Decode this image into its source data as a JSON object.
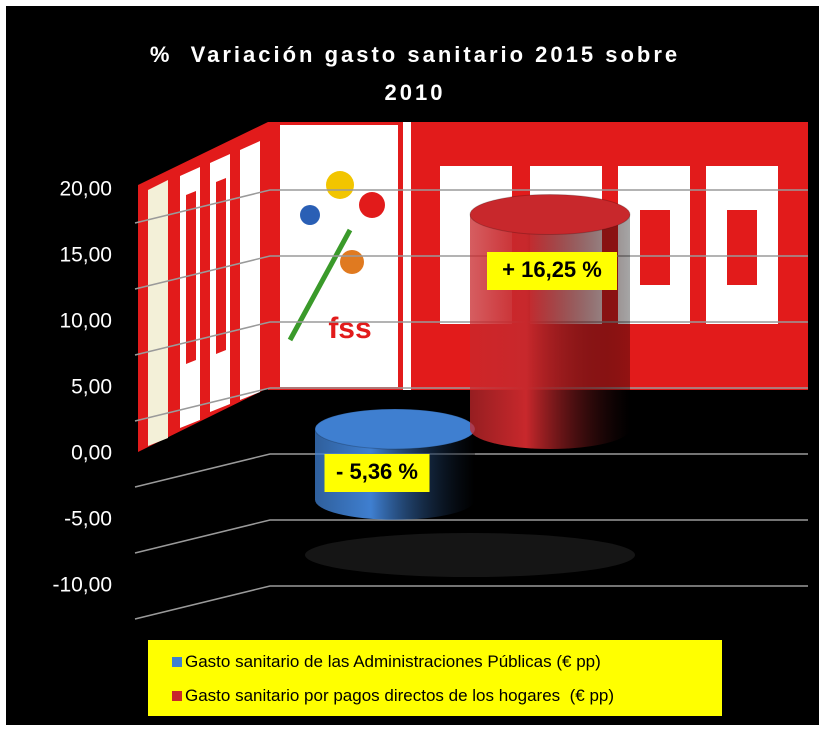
{
  "chart_data": {
    "type": "bar",
    "title": "%  Variación gasto sanitario 2015 sobre 2010",
    "ylim": [
      -10,
      20
    ],
    "yticks": [
      {
        "value": -10,
        "label": "-10,00"
      },
      {
        "value": -5,
        "label": "-5,00"
      },
      {
        "value": 0,
        "label": "0,00"
      },
      {
        "value": 5,
        "label": "5,00"
      },
      {
        "value": 10,
        "label": "10,00"
      },
      {
        "value": 15,
        "label": "15,00"
      },
      {
        "value": 20,
        "label": "20,00"
      }
    ],
    "grid": true,
    "legend": "bottom",
    "series": [
      {
        "name": "Gasto sanitario de las Administraciones Públicas (€ pp)",
        "color": "#3f7fd0",
        "values": [
          -5.36
        ],
        "value_labels": [
          "- 5,36 %"
        ]
      },
      {
        "name": "Gasto sanitario por pagos directos de los hogares  (€ pp)",
        "color": "#c8282c",
        "values": [
          16.25
        ],
        "value_labels": [
          "+ 16,25 %"
        ]
      }
    ]
  }
}
